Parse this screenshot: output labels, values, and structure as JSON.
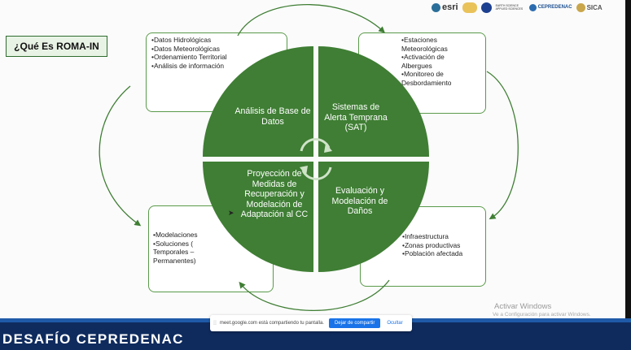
{
  "slide": {
    "title": "¿Qué Es ROMA-IN",
    "quadrants": {
      "top_left": "Análisis de Base de Datos",
      "top_right": "Sistemas de Alerta Temprana (SAT)",
      "bottom_left": "Proyección de Medidas de Recuperación y Modelación de Adaptación al CC",
      "bottom_right": "Evaluación y Modelación de Daños"
    },
    "notes": {
      "top_left": [
        "Datos Hidrológicas",
        "Datos Meteorológicas",
        "Ordenamiento Territorial",
        "Análisis de información"
      ],
      "top_right": [
        "Estaciones Meteorológicas",
        "Activación de Albergues",
        "Monitoreo de Desbordamiento"
      ],
      "bottom_left": [
        "Modelaciones",
        "Soluciones ( Temporales – Permanentes)"
      ],
      "bottom_right": [
        "Infraestructura",
        "Zonas productivas",
        "Población afectada"
      ]
    },
    "logos": {
      "esri": "esri",
      "earth_science": "EARTH SCIENCE APPLIED SCIENCES",
      "cepredenac": "CEPREDENAC",
      "sica": "SICA"
    },
    "colors": {
      "circle_green": "#3f7e34",
      "note_border": "#5a9a4a",
      "footer_blue": "#0f2b5e"
    }
  },
  "watermark": {
    "title": "Activar Windows",
    "subtitle": "Ve a Configuración para activar Windows."
  },
  "share_bar": {
    "message": "meet.google.com está compartiendo tu pantalla.",
    "stop_label": "Dejar de compartir",
    "hide_label": "Ocultar"
  },
  "footer": {
    "text": "DESAFÍO CEPREDENAC"
  }
}
